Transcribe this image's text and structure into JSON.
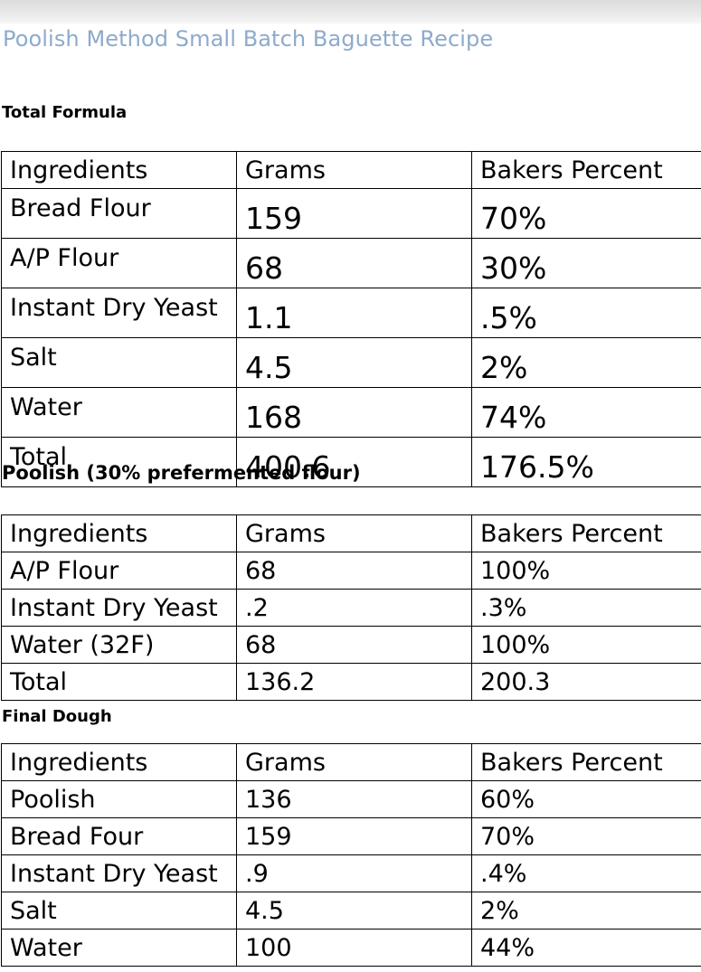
{
  "title": "Poolish Method Small Batch Baguette Recipe",
  "total_formula": {
    "heading": "Total Formula",
    "columns": [
      "Ingredients",
      "Grams",
      "Bakers Percent"
    ],
    "rows": [
      {
        "ingredient": "Bread Flour",
        "grams": "159",
        "percent": "70%"
      },
      {
        "ingredient": "A/P Flour",
        "grams": "68",
        "percent": "30%"
      },
      {
        "ingredient": "Instant Dry Yeast",
        "grams": "1.1",
        "percent": ".5%"
      },
      {
        "ingredient": "Salt",
        "grams": "4.5",
        "percent": "2%"
      },
      {
        "ingredient": "Water",
        "grams": "168",
        "percent": "74%"
      },
      {
        "ingredient": "Total",
        "grams": "400.6",
        "percent": "176.5%"
      }
    ]
  },
  "poolish": {
    "heading": "Poolish (30% prefermented flour)",
    "columns": [
      "Ingredients",
      "Grams",
      "Bakers Percent"
    ],
    "rows": [
      {
        "ingredient": "A/P Flour",
        "grams": "68",
        "percent": "100%"
      },
      {
        "ingredient": "Instant Dry Yeast",
        "grams": ".2",
        "percent": ".3%"
      },
      {
        "ingredient": "Water (32F)",
        "grams": "68",
        "percent": "100%"
      },
      {
        "ingredient": "Total",
        "grams": "136.2",
        "percent": "200.3"
      }
    ]
  },
  "final_dough": {
    "heading": "Final Dough",
    "columns": [
      "Ingredients",
      "Grams",
      "Bakers Percent"
    ],
    "rows": [
      {
        "ingredient": "Poolish",
        "grams": "136",
        "percent": "60%"
      },
      {
        "ingredient": "Bread Four",
        "grams": "159",
        "percent": "70%"
      },
      {
        "ingredient": "Instant Dry Yeast",
        "grams": ".9",
        "percent": ".4%"
      },
      {
        "ingredient": "Salt",
        "grams": "4.5",
        "percent": "2%"
      },
      {
        "ingredient": "Water",
        "grams": "100",
        "percent": "44%"
      }
    ]
  }
}
